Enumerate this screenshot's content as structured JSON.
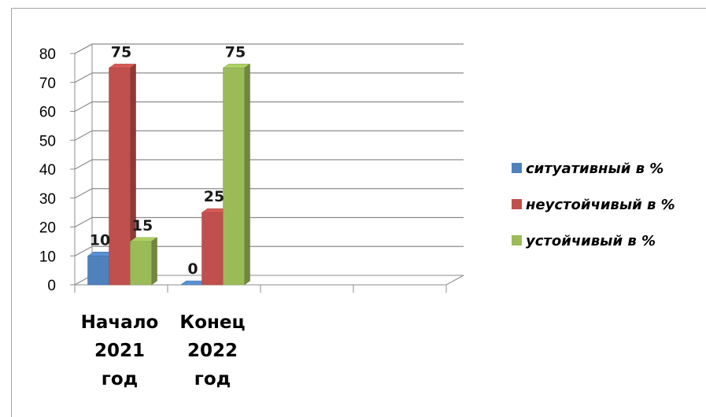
{
  "chart_data": {
    "type": "bar",
    "categories": [
      [
        "Начало",
        "2021",
        "год"
      ],
      [
        "Конец",
        "2022",
        "год"
      ],
      [],
      []
    ],
    "series": [
      {
        "name": "ситуативный в %",
        "values": [
          10,
          0,
          null,
          null
        ],
        "color": "#4f81bd"
      },
      {
        "name": "неустойчивый в %",
        "values": [
          75,
          25,
          null,
          null
        ],
        "color": "#c0504d"
      },
      {
        "name": "устойчивый в %",
        "values": [
          15,
          75,
          null,
          null
        ],
        "color": "#9bbb59"
      }
    ],
    "data_labels": [
      [
        "10",
        "0"
      ],
      [
        "75",
        "25"
      ],
      [
        "15",
        "75"
      ]
    ],
    "y_ticks": [
      "0",
      "10",
      "20",
      "30",
      "40",
      "50",
      "60",
      "70",
      "80"
    ],
    "ylim": [
      0,
      80
    ],
    "grid": true,
    "legend_position": "right",
    "style": "3d-clustered-column"
  }
}
